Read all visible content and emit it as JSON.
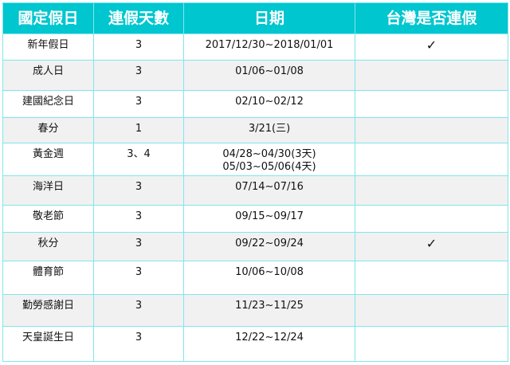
{
  "headers": [
    "國定假日",
    "連假天數",
    "日期",
    "台灣是否連假"
  ],
  "rows": [
    {
      "holiday": "新年假日",
      "days": "3",
      "date": "2017/12/30~2018/01/01",
      "taiwan": "✓"
    },
    {
      "holiday": "成人日",
      "days": "3",
      "date": "01/06~01/08",
      "taiwan": ""
    },
    {
      "holiday": "建國紀念日",
      "days": "3",
      "date": "02/10~02/12",
      "taiwan": ""
    },
    {
      "holiday": "春分",
      "days": "1",
      "date": "3/21(三)",
      "taiwan": ""
    },
    {
      "holiday": "黃金週",
      "days": "3、4",
      "date": "04/28~04/30(3天)",
      "date2": "05/03~05/06(4天)",
      "taiwan": ""
    },
    {
      "holiday": "海洋日",
      "days": "3",
      "date": "07/14~07/16",
      "taiwan": ""
    },
    {
      "holiday": "敬老節",
      "days": "3",
      "date": "09/15~09/17",
      "taiwan": ""
    },
    {
      "holiday": "秋分",
      "days": "3",
      "date": "09/22~09/24",
      "taiwan": "✓"
    },
    {
      "holiday": "體育節",
      "days": "3",
      "date": "10/06~10/08",
      "taiwan": ""
    },
    {
      "holiday": "勤勞感謝日",
      "days": "3",
      "date": "11/23~11/25",
      "taiwan": ""
    },
    {
      "holiday": "天皇誕生日",
      "days": "3",
      "date": "12/22~12/24",
      "taiwan": ""
    }
  ],
  "colors": {
    "header_bg": "#00c6cf",
    "border": "#7fe6ee",
    "alt_row": "#f1f1f1"
  }
}
